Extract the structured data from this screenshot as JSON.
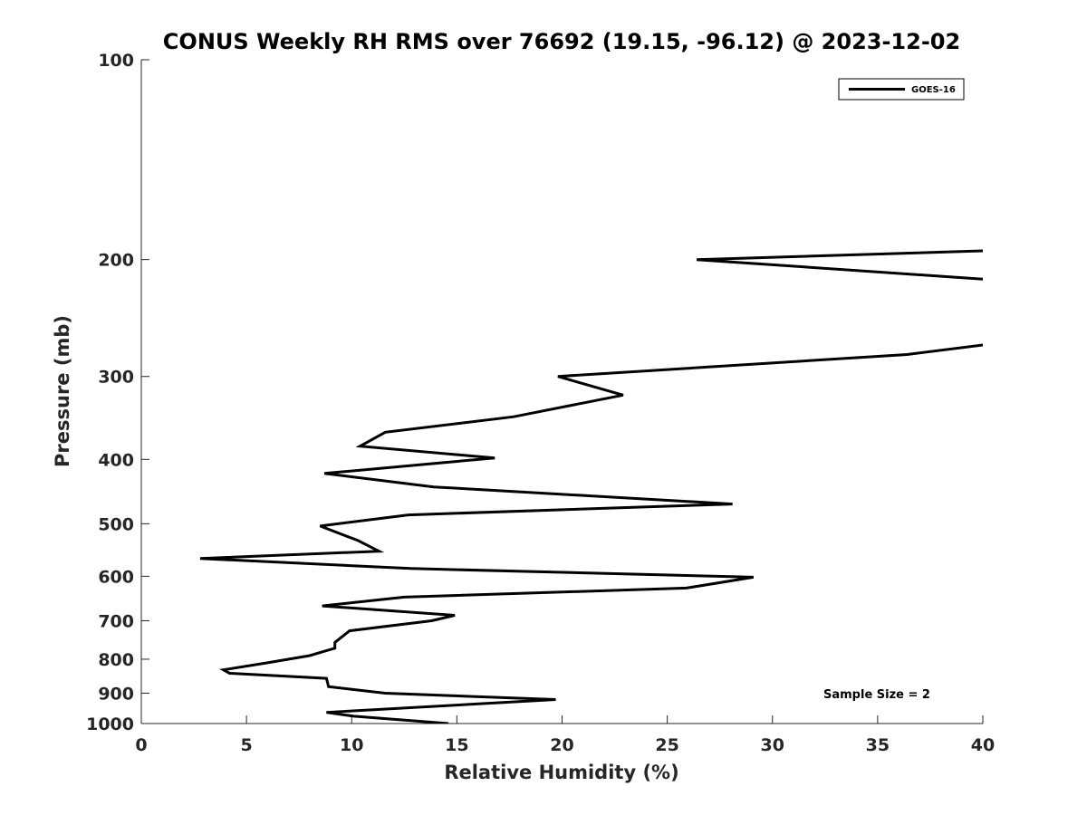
{
  "chart_data": {
    "type": "line",
    "title": "CONUS Weekly RH RMS over 76692 (19.15, -96.12) @ 2023-12-02",
    "xlabel": "Relative Humidity (%)",
    "ylabel": "Pressure (mb)",
    "xlim": [
      0,
      40
    ],
    "ylim": [
      1000,
      100
    ],
    "y_scale": "log",
    "grid": false,
    "legend_position": "top-right",
    "x_ticks": [
      0,
      5,
      10,
      15,
      20,
      25,
      30,
      35,
      40
    ],
    "y_ticks": [
      100,
      200,
      300,
      400,
      500,
      600,
      700,
      800,
      900,
      1000
    ],
    "annotation": "Sample Size = 2",
    "series": [
      {
        "name": "GOES-16",
        "color": "#000000",
        "points": [
          [
            14.6,
            1000
          ],
          [
            10.1,
            975
          ],
          [
            8.8,
            962
          ],
          [
            19.7,
            920
          ],
          [
            11.6,
            900
          ],
          [
            8.9,
            880
          ],
          [
            8.8,
            855
          ],
          [
            4.2,
            840
          ],
          [
            3.9,
            830
          ],
          [
            6.0,
            810
          ],
          [
            8.0,
            790
          ],
          [
            9.2,
            770
          ],
          [
            9.2,
            755
          ],
          [
            9.9,
            725
          ],
          [
            13.8,
            700
          ],
          [
            14.9,
            687
          ],
          [
            8.6,
            665
          ],
          [
            12.5,
            645
          ],
          [
            25.9,
            625
          ],
          [
            29.1,
            602
          ],
          [
            12.8,
            584
          ],
          [
            2.8,
            564
          ],
          [
            11.3,
            550
          ],
          [
            10.3,
            530
          ],
          [
            8.5,
            504
          ],
          [
            12.7,
            485
          ],
          [
            28.1,
            467
          ],
          [
            13.9,
            440
          ],
          [
            8.7,
            420
          ],
          [
            16.8,
            398
          ],
          [
            10.4,
            382
          ],
          [
            11.6,
            364
          ],
          [
            17.7,
            345
          ],
          [
            22.9,
            320
          ],
          [
            19.8,
            300
          ],
          [
            36.4,
            278
          ],
          [
            40.0,
            269
          ],
          [
            null,
            null
          ],
          [
            40.0,
            214
          ],
          [
            26.4,
            200
          ],
          [
            40.0,
            194
          ]
        ]
      }
    ]
  }
}
